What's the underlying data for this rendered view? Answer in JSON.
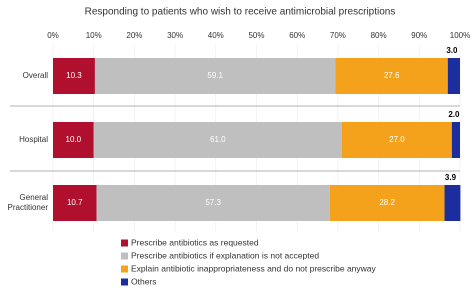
{
  "chart_data": {
    "type": "stacked-barh",
    "title": "Responding to patients who wish to receive antimicrobial prescriptions",
    "categories": [
      "Overall",
      "Hospital",
      "General Practitioner"
    ],
    "series": [
      {
        "name": "Prescribe antibiotics as requested",
        "color": "#b0102e",
        "values": [
          10.3,
          10.0,
          10.7
        ],
        "value_labels": [
          "10.3",
          "10.0",
          "10.7"
        ]
      },
      {
        "name": "Prescribe antibiotics if explanation is not accepted",
        "color": "#bfbfbf",
        "values": [
          59.1,
          61.0,
          57.3
        ],
        "value_labels": [
          "59.1",
          "61.0",
          "57.3"
        ]
      },
      {
        "name": "Explain antibiotic inappropriateness and do not prescribe anyway",
        "color": "#f4a21b",
        "values": [
          27.6,
          27.0,
          28.2
        ],
        "value_labels": [
          "27.6",
          "27.0",
          "28.2"
        ]
      },
      {
        "name": "Others",
        "color": "#1c2e9e",
        "values": [
          3.0,
          2.0,
          3.9
        ],
        "value_labels": [
          "3.0",
          "2.0",
          "3.9"
        ]
      }
    ],
    "xlim": [
      0,
      100
    ],
    "xticks": [
      {
        "value": 0,
        "label": "0%"
      },
      {
        "value": 10,
        "label": "10%"
      },
      {
        "value": 20,
        "label": "20%"
      },
      {
        "value": 30,
        "label": "30%"
      },
      {
        "value": 40,
        "label": "40%"
      },
      {
        "value": 50,
        "label": "50%"
      },
      {
        "value": 60,
        "label": "60%"
      },
      {
        "value": 70,
        "label": "70%"
      },
      {
        "value": 80,
        "label": "80%"
      },
      {
        "value": 90,
        "label": "90%"
      },
      {
        "value": 100,
        "label": "100%"
      }
    ],
    "grid": true
  }
}
